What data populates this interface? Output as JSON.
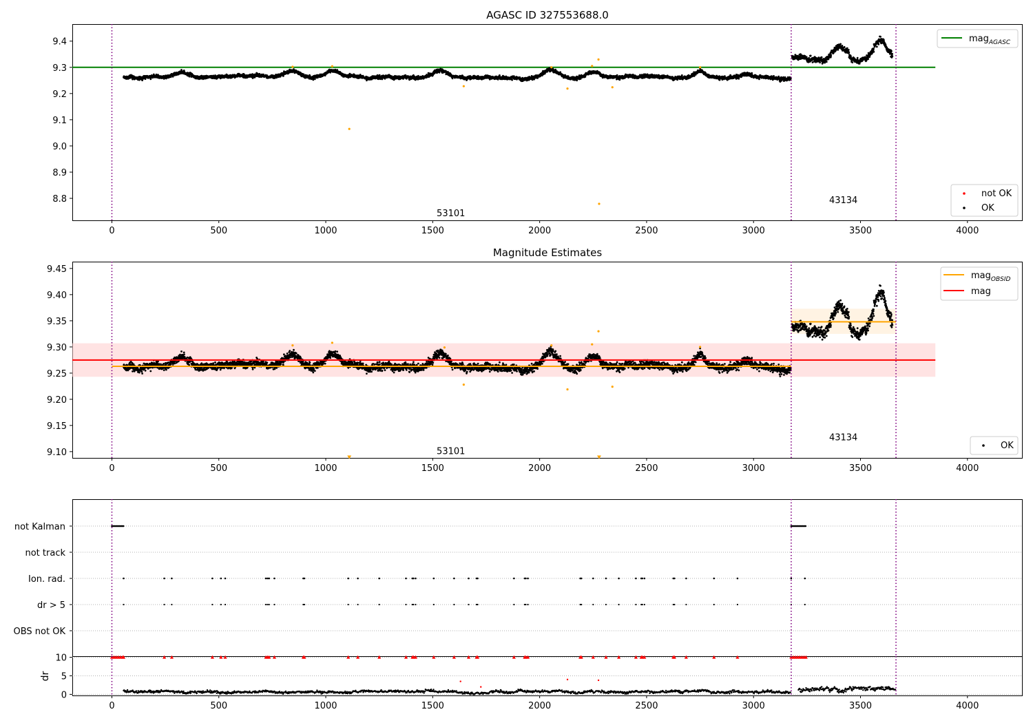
{
  "figure": {
    "background": "#ffffff"
  },
  "colors": {
    "ok": "#000000",
    "not_ok": "#ff0000",
    "excluded": "#ffa500",
    "mag_agasc": "#008000",
    "mag_obsid": "#ffa500",
    "mag": "#ff0000",
    "obs_sep": "#800080",
    "band_mag": "#ffcccc",
    "band_obsid": "#ffe9cc"
  },
  "chart_data": [
    {
      "id": "top",
      "type": "scatter",
      "title": "AGASC ID 327553688.0",
      "xlabel": "",
      "ylabel": "",
      "xlim": [
        -185,
        4255
      ],
      "ylim": [
        8.716,
        9.465
      ],
      "xticks": [
        0,
        500,
        1000,
        1500,
        2000,
        2500,
        3000,
        3500,
        4000
      ],
      "yticks": [
        8.8,
        8.9,
        9.0,
        9.1,
        9.2,
        9.3,
        9.4
      ],
      "ytick_labels": [
        "8.8",
        "8.9",
        "9.0",
        "9.1",
        "9.2",
        "9.3",
        "9.4"
      ],
      "grid": false,
      "observation_boundaries": [
        0,
        3176,
        3666
      ],
      "observation_labels": [
        {
          "text": "53101",
          "x": 1585,
          "y": 8.745
        },
        {
          "text": "43134",
          "x": 3420,
          "y": 8.795
        }
      ],
      "hlines": [
        {
          "name": "mag_AGASC",
          "y": 9.3,
          "x": [
            -185,
            3850
          ],
          "color": "#008000"
        }
      ],
      "excluded_points": [
        [
          845,
          9.302
        ],
        [
          1030,
          9.304
        ],
        [
          1110,
          9.065
        ],
        [
          1645,
          9.228
        ],
        [
          2055,
          9.3
        ],
        [
          2130,
          9.219
        ],
        [
          2245,
          9.305
        ],
        [
          2275,
          9.33
        ],
        [
          2278,
          8.779
        ],
        [
          2340,
          9.224
        ],
        [
          2750,
          9.3
        ]
      ],
      "series": [
        {
          "name": "OK",
          "segments": [
            {
              "x": [
                55,
                3175
              ],
              "base": 9.262,
              "amp": 0.012,
              "noise": 0.006,
              "bumps": [
                [
                  330,
                  0.02
                ],
                [
                  845,
                  0.026
                ],
                [
                  1030,
                  0.028
                ],
                [
                  1540,
                  0.018
                ],
                [
                  2055,
                  0.028
                ],
                [
                  2245,
                  0.022
                ],
                [
                  2750,
                  0.025
                ],
                [
                  2960,
                  0.012
                ]
              ]
            },
            {
              "x": [
                3180,
                3650
              ],
              "base": 9.335,
              "amp": 0.028,
              "noise": 0.01,
              "bumps": [
                [
                  3400,
                  0.045
                ],
                [
                  3590,
                  0.055
                ],
                [
                  3480,
                  -0.02
                ]
              ]
            }
          ]
        }
      ],
      "legends": [
        {
          "position": "top-right",
          "entries": [
            {
              "label": "mag",
              "sub": "AGASC",
              "kind": "line",
              "color": "#008000"
            }
          ]
        },
        {
          "position": "bottom-right",
          "entries": [
            {
              "label": "not OK",
              "kind": "dot",
              "color": "#ff0000"
            },
            {
              "label": "OK",
              "kind": "dot",
              "color": "#000000"
            }
          ]
        }
      ]
    },
    {
      "id": "middle",
      "type": "scatter",
      "title": "Magnitude Estimates",
      "xlabel": "",
      "ylabel": "",
      "xlim": [
        -185,
        4255
      ],
      "ylim": [
        9.088,
        9.463
      ],
      "xticks": [
        0,
        500,
        1000,
        1500,
        2000,
        2500,
        3000,
        3500,
        4000
      ],
      "yticks": [
        9.1,
        9.15,
        9.2,
        9.25,
        9.3,
        9.35,
        9.4,
        9.45
      ],
      "ytick_labels": [
        "9.10",
        "9.15",
        "9.20",
        "9.25",
        "9.30",
        "9.35",
        "9.40",
        "9.45"
      ],
      "grid": false,
      "observation_boundaries": [
        0,
        3176,
        3666
      ],
      "observation_labels": [
        {
          "text": "53101",
          "x": 1585,
          "y": 9.102
        },
        {
          "text": "43134",
          "x": 3420,
          "y": 9.128
        }
      ],
      "bands": [
        {
          "name": "mag",
          "x": [
            -185,
            3850
          ],
          "y": [
            9.243,
            9.307
          ],
          "color": "#ffcccc"
        },
        {
          "name": "mag_OBSID 43134",
          "x": [
            3176,
            3666
          ],
          "y": [
            9.325,
            9.373
          ],
          "color": "#ffe9cc"
        }
      ],
      "hlines": [
        {
          "name": "mag",
          "y": 9.275,
          "x": [
            -185,
            3850
          ],
          "color": "#ff0000"
        },
        {
          "name": "mag_OBSID 53101",
          "y": 9.263,
          "x": [
            0,
            3176
          ],
          "color": "#ffa500"
        },
        {
          "name": "mag_OBSID 43134",
          "y": 9.348,
          "x": [
            3176,
            3666
          ],
          "color": "#ffa500"
        }
      ],
      "excluded_points": [
        [
          845,
          9.303
        ],
        [
          1030,
          9.308
        ],
        [
          1645,
          9.228
        ],
        [
          2055,
          9.303
        ],
        [
          2130,
          9.219
        ],
        [
          2245,
          9.305
        ],
        [
          2275,
          9.33
        ],
        [
          2340,
          9.224
        ],
        [
          2750,
          9.3
        ],
        [
          1555,
          9.299
        ]
      ],
      "offscale_markers": [
        [
          1110,
          9.09
        ],
        [
          2278,
          9.09
        ]
      ],
      "series": [
        {
          "name": "OK",
          "segments": [
            {
              "x": [
                55,
                3175
              ],
              "base": 9.262,
              "amp": 0.012,
              "noise": 0.007,
              "bumps": [
                [
                  330,
                  0.02
                ],
                [
                  845,
                  0.026
                ],
                [
                  1030,
                  0.028
                ],
                [
                  1540,
                  0.018
                ],
                [
                  2055,
                  0.028
                ],
                [
                  2245,
                  0.022
                ],
                [
                  2750,
                  0.025
                ],
                [
                  2960,
                  0.012
                ]
              ]
            },
            {
              "x": [
                3180,
                3650
              ],
              "base": 9.335,
              "amp": 0.028,
              "noise": 0.01,
              "bumps": [
                [
                  3400,
                  0.045
                ],
                [
                  3590,
                  0.055
                ],
                [
                  3480,
                  -0.02
                ]
              ]
            }
          ]
        }
      ],
      "legends": [
        {
          "position": "top-right",
          "entries": [
            {
              "label": "mag",
              "sub": "OBSID",
              "kind": "line",
              "color": "#ffa500"
            },
            {
              "label": "mag",
              "kind": "line",
              "color": "#ff0000"
            }
          ]
        },
        {
          "position": "bottom-right",
          "entries": [
            {
              "label": "OK",
              "kind": "dot",
              "color": "#000000"
            }
          ]
        }
      ]
    },
    {
      "id": "flags",
      "type": "scatter",
      "title": "",
      "xlabel": "",
      "ylabel": "",
      "xlim": [
        -185,
        4255
      ],
      "categories": [
        "not Kalman",
        "not track",
        "Ion. rad.",
        "dr > 5",
        "OBS not OK"
      ],
      "grid": true,
      "observation_boundaries": [
        0,
        3176,
        3666
      ],
      "flag_x": [
        55,
        245,
        280,
        470,
        510,
        530,
        720,
        728,
        735,
        760,
        895,
        900,
        1105,
        1150,
        1250,
        1375,
        1405,
        1410,
        1420,
        1505,
        1600,
        1668,
        1705,
        1710,
        1880,
        1930,
        1935,
        1945,
        2190,
        2195,
        2250,
        2310,
        2370,
        2450,
        2475,
        2480,
        2490,
        2625,
        2630,
        2685,
        2815,
        2925,
        3176,
        3240
      ],
      "not_kalman_ranges": [
        [
          0,
          55
        ],
        [
          3176,
          3245
        ]
      ]
    },
    {
      "id": "dr",
      "type": "scatter",
      "title": "",
      "xlabel": "",
      "ylabel": "dr",
      "xlim": [
        -185,
        4255
      ],
      "ylim": [
        -0.3,
        10.3
      ],
      "xticks": [
        0,
        500,
        1000,
        1500,
        2000,
        2500,
        3000,
        3500,
        4000
      ],
      "yticks": [
        0,
        5,
        10
      ],
      "grid": true,
      "observation_boundaries": [
        0,
        3176,
        3666
      ],
      "not_ok_x": [
        0,
        10,
        20,
        30,
        40,
        50,
        55,
        245,
        280,
        470,
        510,
        530,
        720,
        728,
        735,
        760,
        895,
        900,
        1105,
        1150,
        1250,
        1375,
        1405,
        1410,
        1420,
        1505,
        1600,
        1668,
        1705,
        1710,
        1880,
        1930,
        1935,
        1945,
        2190,
        2195,
        2250,
        2310,
        2370,
        2450,
        2475,
        2480,
        2490,
        2625,
        2630,
        2685,
        2815,
        2925,
        3176,
        3186,
        3196,
        3206,
        3216,
        3226,
        3236,
        3245
      ],
      "isolated_points": [
        [
          1630,
          3.5
        ],
        [
          1725,
          2.0
        ],
        [
          2130,
          4.0
        ],
        [
          2275,
          3.8
        ]
      ],
      "series": [
        {
          "name": "OK",
          "segments": [
            {
              "x": [
                55,
                3175
              ],
              "base": 0.7,
              "amp": 0.3,
              "noise": 0.3
            },
            {
              "x": [
                3210,
                3665
              ],
              "base": 1.2,
              "amp": 0.6,
              "noise": 0.5
            }
          ]
        }
      ]
    }
  ]
}
